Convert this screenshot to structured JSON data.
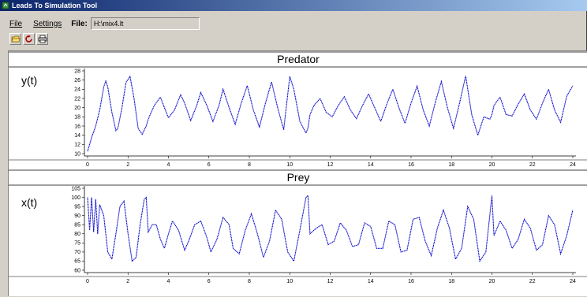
{
  "window": {
    "title": "Leads To Simulation Tool"
  },
  "menu": {
    "file": "File",
    "settings": "Settings"
  },
  "file_field": {
    "label": "File:",
    "value": "H:\\mix4.lt"
  },
  "toolbar": {
    "open_icon": "open-folder-icon",
    "reload_icon": "reload-icon",
    "print_icon": "printer-icon"
  },
  "colors": {
    "series": "#0000cc",
    "titlebar": "#0a246a"
  },
  "chart_data": [
    {
      "type": "line",
      "title": "Predator",
      "ylabel": "y(t)",
      "xlabel": "",
      "xlim": [
        0,
        24
      ],
      "ylim": [
        10,
        28
      ],
      "xticks": [
        0,
        2,
        4,
        6,
        8,
        10,
        12,
        14,
        16,
        18,
        20,
        22,
        24
      ],
      "yticks": [
        10,
        12,
        14,
        16,
        18,
        20,
        22,
        24,
        26,
        28
      ],
      "series": [
        {
          "x": [
            0,
            0.2,
            0.4,
            0.6,
            0.8,
            0.9,
            1.0,
            1.2,
            1.4,
            1.5,
            1.7,
            1.9,
            2.1,
            2.3,
            2.5,
            2.7,
            2.9,
            3.0,
            3.1,
            3.3,
            3.6,
            3.8,
            4.0,
            4.3,
            4.6,
            4.8,
            5.1,
            5.4,
            5.6,
            5.9,
            6.2,
            6.5,
            6.7,
            7.0,
            7.3,
            7.6,
            7.9,
            8.2,
            8.5,
            8.8,
            9.1,
            9.4,
            9.7,
            10.0,
            10.2,
            10.5,
            10.8,
            10.9,
            11.0,
            11.2,
            11.5,
            11.8,
            12.1,
            12.4,
            12.7,
            13.0,
            13.3,
            13.6,
            13.9,
            14.2,
            14.5,
            14.8,
            15.1,
            15.4,
            15.7,
            16.0,
            16.3,
            16.6,
            16.9,
            17.2,
            17.5,
            17.8,
            18.1,
            18.4,
            18.7,
            19.0,
            19.3,
            19.6,
            19.9,
            20.0,
            20.1,
            20.4,
            20.7,
            21.0,
            21.3,
            21.6,
            21.9,
            22.2,
            22.5,
            22.8,
            23.1,
            23.4,
            23.7,
            24.0
          ],
          "values": [
            10.5,
            13.5,
            16,
            19.5,
            24.5,
            25.8,
            24.5,
            19,
            15,
            15.5,
            20,
            25.5,
            26.8,
            22,
            15.5,
            14.2,
            16,
            17.5,
            18.5,
            20.5,
            22.3,
            20,
            17.8,
            19.5,
            22.8,
            21,
            17.2,
            20.5,
            23.3,
            20.5,
            17,
            20.5,
            24,
            20,
            16.4,
            21,
            24.8,
            19.5,
            15.8,
            21,
            25.6,
            20,
            15.2,
            26.8,
            24,
            17,
            14.5,
            15.5,
            18.5,
            20.5,
            22,
            19,
            18,
            20.5,
            22.4,
            19.5,
            17.6,
            20.5,
            23,
            20,
            17,
            20.8,
            24,
            20,
            16.6,
            21,
            24.7,
            19.5,
            16,
            21.2,
            25.7,
            20,
            15.5,
            21,
            26.9,
            18.5,
            14,
            18,
            17.5,
            18.5,
            20.5,
            22.3,
            18.5,
            18.2,
            20.8,
            23,
            19.5,
            17.5,
            21,
            24,
            19.5,
            16.8,
            22.5,
            24.8
          ]
        }
      ]
    },
    {
      "type": "line",
      "title": "Prey",
      "ylabel": "x(t)",
      "xlabel": "",
      "xlim": [
        0,
        24
      ],
      "ylim": [
        60,
        105
      ],
      "xticks": [
        0,
        2,
        4,
        6,
        8,
        10,
        12,
        14,
        16,
        18,
        20,
        22,
        24
      ],
      "yticks": [
        60,
        65,
        70,
        75,
        80,
        85,
        90,
        95,
        100,
        105
      ],
      "series": [
        {
          "x": [
            0,
            0.1,
            0.2,
            0.3,
            0.4,
            0.5,
            0.6,
            0.8,
            1.0,
            1.2,
            1.4,
            1.6,
            1.8,
            2.0,
            2.2,
            2.4,
            2.6,
            2.8,
            2.9,
            3.0,
            3.2,
            3.4,
            3.6,
            3.8,
            4.0,
            4.2,
            4.5,
            4.8,
            5.0,
            5.3,
            5.6,
            5.9,
            6.1,
            6.4,
            6.7,
            7.0,
            7.2,
            7.5,
            7.8,
            8.1,
            8.4,
            8.7,
            9.0,
            9.3,
            9.6,
            9.9,
            10.2,
            10.5,
            10.8,
            10.9,
            11.0,
            11.3,
            11.6,
            11.9,
            12.2,
            12.5,
            12.8,
            13.1,
            13.4,
            13.7,
            14.0,
            14.3,
            14.6,
            14.9,
            15.2,
            15.5,
            15.8,
            16.1,
            16.4,
            16.7,
            17.0,
            17.3,
            17.6,
            17.9,
            18.2,
            18.5,
            18.8,
            19.1,
            19.4,
            19.7,
            20.0,
            20.1,
            20.4,
            20.7,
            21.0,
            21.3,
            21.6,
            21.9,
            22.2,
            22.5,
            22.8,
            23.1,
            23.4,
            23.7,
            24.0
          ],
          "values": [
            100,
            82,
            100,
            81,
            99,
            80,
            96,
            90,
            70,
            66,
            80,
            95,
            98,
            80,
            65,
            67,
            85,
            99,
            100,
            81,
            85,
            85,
            77,
            72,
            80,
            87,
            82,
            71,
            76,
            85,
            87,
            78,
            70,
            77,
            89,
            85,
            72,
            69,
            82,
            91,
            80,
            67,
            76,
            93,
            88,
            70,
            65,
            82,
            100,
            101,
            80,
            83,
            85,
            74,
            76,
            86,
            82,
            73,
            74,
            86,
            84,
            72,
            72,
            87,
            85,
            70,
            71,
            88,
            89,
            76,
            68,
            83,
            93,
            83,
            66,
            72,
            95,
            88,
            65,
            70,
            101,
            79,
            87,
            82,
            72,
            77,
            88,
            83,
            71,
            74,
            90,
            85,
            69,
            79,
            93
          ]
        }
      ]
    }
  ]
}
